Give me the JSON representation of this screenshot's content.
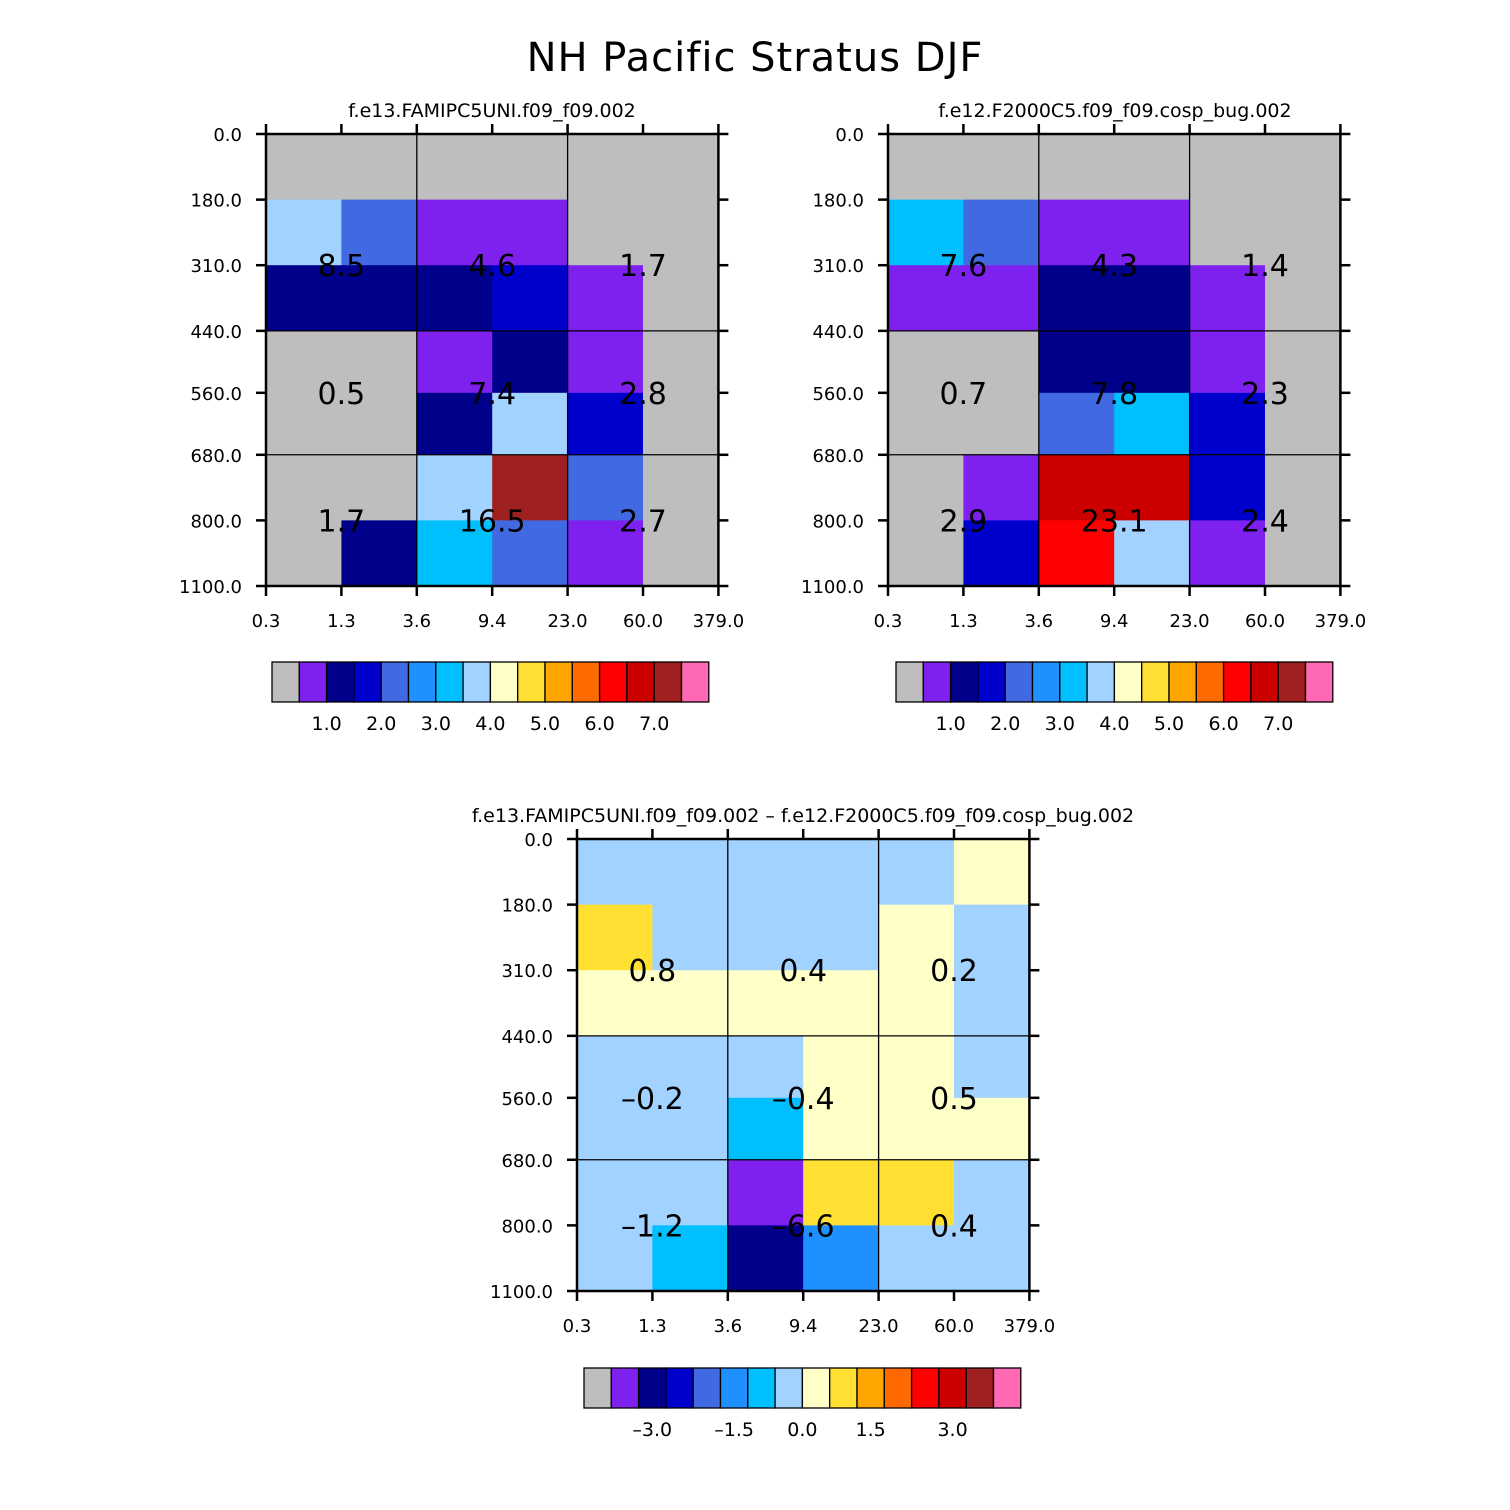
{
  "page_title": "NH Pacific Stratus DJF",
  "colors": {
    "gray": "#bebebe",
    "c1": "#7f21ee",
    "c2": "#00008b",
    "c3": "#0000cd",
    "c4": "#4169e1",
    "c5": "#1e90ff",
    "c6": "#00bfff",
    "c7": "#a2d2ff",
    "c8": "#ffffc8",
    "c9": "#ffe032",
    "c10": "#ffa500",
    "c11": "#ff6a00",
    "c12": "#ff0000",
    "c13": "#cd0000",
    "c14": "#9e2020",
    "c15": "#ff69b4"
  },
  "chart_data": [
    {
      "type": "heatmap",
      "title": "f.e13.FAMIPC5UNI.f09_f09.002",
      "x_tick_labels": [
        "0.3",
        "1.3",
        "3.6",
        "9.4",
        "23.0",
        "60.0",
        "379.0"
      ],
      "y_tick_labels": [
        "0.0",
        "180.0",
        "310.0",
        "440.0",
        "560.0",
        "680.0",
        "800.0",
        "1100.0"
      ],
      "cells": [
        [
          "gray",
          "gray",
          "gray",
          "gray",
          "gray",
          "gray"
        ],
        [
          "c7",
          "c4",
          "c1",
          "c1",
          "gray",
          "gray"
        ],
        [
          "c2",
          "c2",
          "c2",
          "c3",
          "c1",
          "gray"
        ],
        [
          "gray",
          "gray",
          "c1",
          "c2",
          "c1",
          "gray"
        ],
        [
          "gray",
          "gray",
          "c2",
          "c7",
          "c3",
          "gray"
        ],
        [
          "gray",
          "gray",
          "c7",
          "c14",
          "c4",
          "gray"
        ],
        [
          "gray",
          "c2",
          "c6",
          "c4",
          "c1",
          "gray"
        ]
      ],
      "block_values": [
        [
          "8.5",
          "4.6",
          "1.7"
        ],
        [
          "0.5",
          "7.4",
          "2.8"
        ],
        [
          "1.7",
          "16.5",
          "2.7"
        ]
      ],
      "colorbar": {
        "boxes": [
          "gray",
          "c1",
          "c2",
          "c3",
          "c4",
          "c5",
          "c6",
          "c7",
          "c8",
          "c9",
          "c10",
          "c11",
          "c12",
          "c13",
          "c14",
          "c15"
        ],
        "labels": [
          "1.0",
          "2.0",
          "3.0",
          "4.0",
          "5.0",
          "6.0",
          "7.0"
        ],
        "label_boundaries": [
          2,
          4,
          6,
          8,
          10,
          12,
          14
        ]
      }
    },
    {
      "type": "heatmap",
      "title": "f.e12.F2000C5.f09_f09.cosp_bug.002",
      "x_tick_labels": [
        "0.3",
        "1.3",
        "3.6",
        "9.4",
        "23.0",
        "60.0",
        "379.0"
      ],
      "y_tick_labels": [
        "0.0",
        "180.0",
        "310.0",
        "440.0",
        "560.0",
        "680.0",
        "800.0",
        "1100.0"
      ],
      "cells": [
        [
          "gray",
          "gray",
          "gray",
          "gray",
          "gray",
          "gray"
        ],
        [
          "c6",
          "c4",
          "c1",
          "c1",
          "gray",
          "gray"
        ],
        [
          "c1",
          "c1",
          "c2",
          "c2",
          "c1",
          "gray"
        ],
        [
          "gray",
          "gray",
          "c2",
          "c2",
          "c1",
          "gray"
        ],
        [
          "gray",
          "gray",
          "c4",
          "c6",
          "c3",
          "gray"
        ],
        [
          "gray",
          "c1",
          "c13",
          "c13",
          "c3",
          "gray"
        ],
        [
          "gray",
          "c3",
          "c12",
          "c7",
          "c1",
          "gray"
        ]
      ],
      "block_values": [
        [
          "7.6",
          "4.3",
          "1.4"
        ],
        [
          "0.7",
          "7.8",
          "2.3"
        ],
        [
          "2.9",
          "23.1",
          "2.4"
        ]
      ],
      "colorbar": {
        "boxes": [
          "gray",
          "c1",
          "c2",
          "c3",
          "c4",
          "c5",
          "c6",
          "c7",
          "c8",
          "c9",
          "c10",
          "c11",
          "c12",
          "c13",
          "c14",
          "c15"
        ],
        "labels": [
          "1.0",
          "2.0",
          "3.0",
          "4.0",
          "5.0",
          "6.0",
          "7.0"
        ],
        "label_boundaries": [
          2,
          4,
          6,
          8,
          10,
          12,
          14
        ]
      }
    },
    {
      "type": "heatmap",
      "title": "f.e13.FAMIPC5UNI.f09_f09.002 – f.e12.F2000C5.f09_f09.cosp_bug.002",
      "x_tick_labels": [
        "0.3",
        "1.3",
        "3.6",
        "9.4",
        "23.0",
        "60.0",
        "379.0"
      ],
      "y_tick_labels": [
        "0.0",
        "180.0",
        "310.0",
        "440.0",
        "560.0",
        "680.0",
        "800.0",
        "1100.0"
      ],
      "cells": [
        [
          "c7",
          "c7",
          "c7",
          "c7",
          "c7",
          "c8"
        ],
        [
          "c9",
          "c7",
          "c7",
          "c7",
          "c8",
          "c7"
        ],
        [
          "c8",
          "c8",
          "c8",
          "c8",
          "c8",
          "c7"
        ],
        [
          "c7",
          "c7",
          "c7",
          "c8",
          "c8",
          "c7"
        ],
        [
          "c7",
          "c7",
          "c6",
          "c8",
          "c8",
          "c8"
        ],
        [
          "c7",
          "c7",
          "c1",
          "c9",
          "c9",
          "c7"
        ],
        [
          "c7",
          "c6",
          "c2",
          "c5",
          "c7",
          "c7"
        ]
      ],
      "block_values": [
        [
          "0.8",
          "0.4",
          "0.2"
        ],
        [
          "–0.2",
          "–0.4",
          "0.5"
        ],
        [
          "–1.2",
          "–6.6",
          "0.4"
        ]
      ],
      "colorbar": {
        "boxes": [
          "gray",
          "c1",
          "c2",
          "c3",
          "c4",
          "c5",
          "c6",
          "c7",
          "c8",
          "c9",
          "c10",
          "c11",
          "c12",
          "c13",
          "c14",
          "c15"
        ],
        "labels": [
          "–3.0",
          "–1.5",
          "0.0",
          "1.5",
          "3.0"
        ],
        "label_boundaries": [
          2.5,
          5.5,
          8,
          10.5,
          13.5
        ]
      }
    }
  ]
}
